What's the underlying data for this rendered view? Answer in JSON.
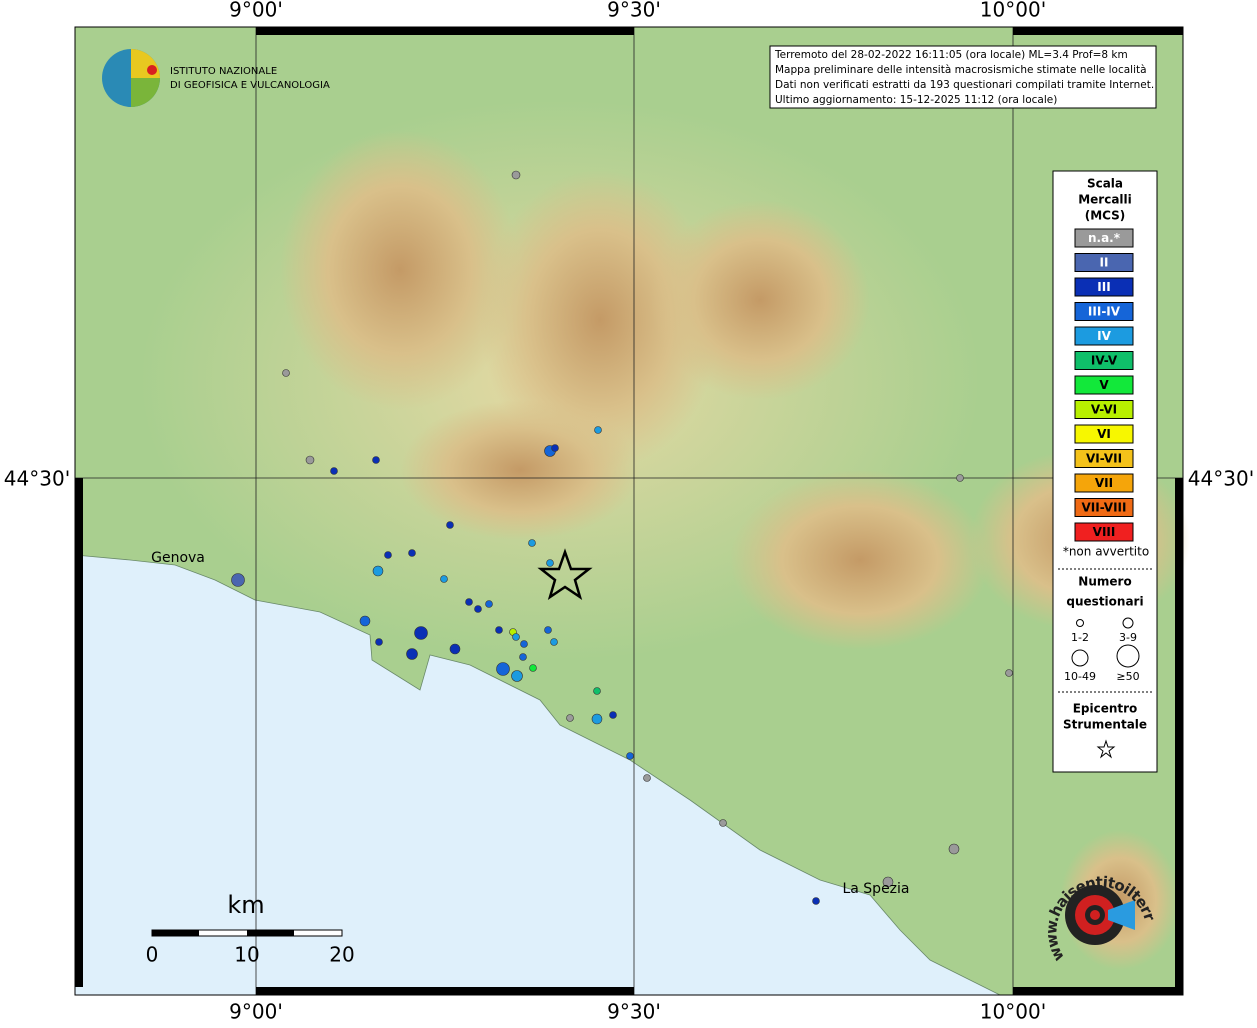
{
  "grid_labels": {
    "lon": [
      "9°00'",
      "9°30'",
      "10°00'"
    ],
    "lat": [
      "44°30'"
    ]
  },
  "info_lines": [
    "Terremoto del 28-02-2022 16:11:05 (ora locale) ML=3.4 Prof=8 km",
    "Mappa preliminare delle intensità macrosismiche stimate nelle località",
    "Dati non verificati estratti da 193 questionari compilati tramite Internet.",
    "Ultimo aggiornamento: 15-12-2025 11:12 (ora locale)"
  ],
  "logo": [
    "ISTITUTO NAZIONALE",
    "DI GEOFISICA E VULCANOLOGIA"
  ],
  "places": [
    "Genova",
    "La Spezia"
  ],
  "legend": {
    "title_lines": [
      "Scala",
      "Mercalli",
      "(MCS)"
    ],
    "classes": [
      {
        "label": "n.a.*",
        "color": "#9a9a9a"
      },
      {
        "label": "II",
        "color": "#4a66b0"
      },
      {
        "label": "III",
        "color": "#0a2fb5"
      },
      {
        "label": "III-IV",
        "color": "#1565d8"
      },
      {
        "label": "IV",
        "color": "#1c9be0"
      },
      {
        "label": "IV-V",
        "color": "#0fbf6a"
      },
      {
        "label": "V",
        "color": "#12e83a"
      },
      {
        "label": "V-VI",
        "color": "#b8f000"
      },
      {
        "label": "VI",
        "color": "#f7f700"
      },
      {
        "label": "VI-VII",
        "color": "#f4c21a"
      },
      {
        "label": "VII",
        "color": "#f5a50a"
      },
      {
        "label": "VII-VIII",
        "color": "#f06a14"
      },
      {
        "label": "VIII",
        "color": "#f02020"
      }
    ],
    "note": "*non avvertito",
    "count_title_lines": [
      "Numero",
      "questionari"
    ],
    "count_sizes": [
      "1-2",
      "3-9",
      "10-49",
      "≥50"
    ],
    "epicenter_lines": [
      "Epicentro",
      "Strumentale"
    ]
  },
  "scale_bar": {
    "unit": "km",
    "ticks": [
      "0",
      "10",
      "20"
    ]
  },
  "badge": "www.haisentitoilterremoto.it"
}
